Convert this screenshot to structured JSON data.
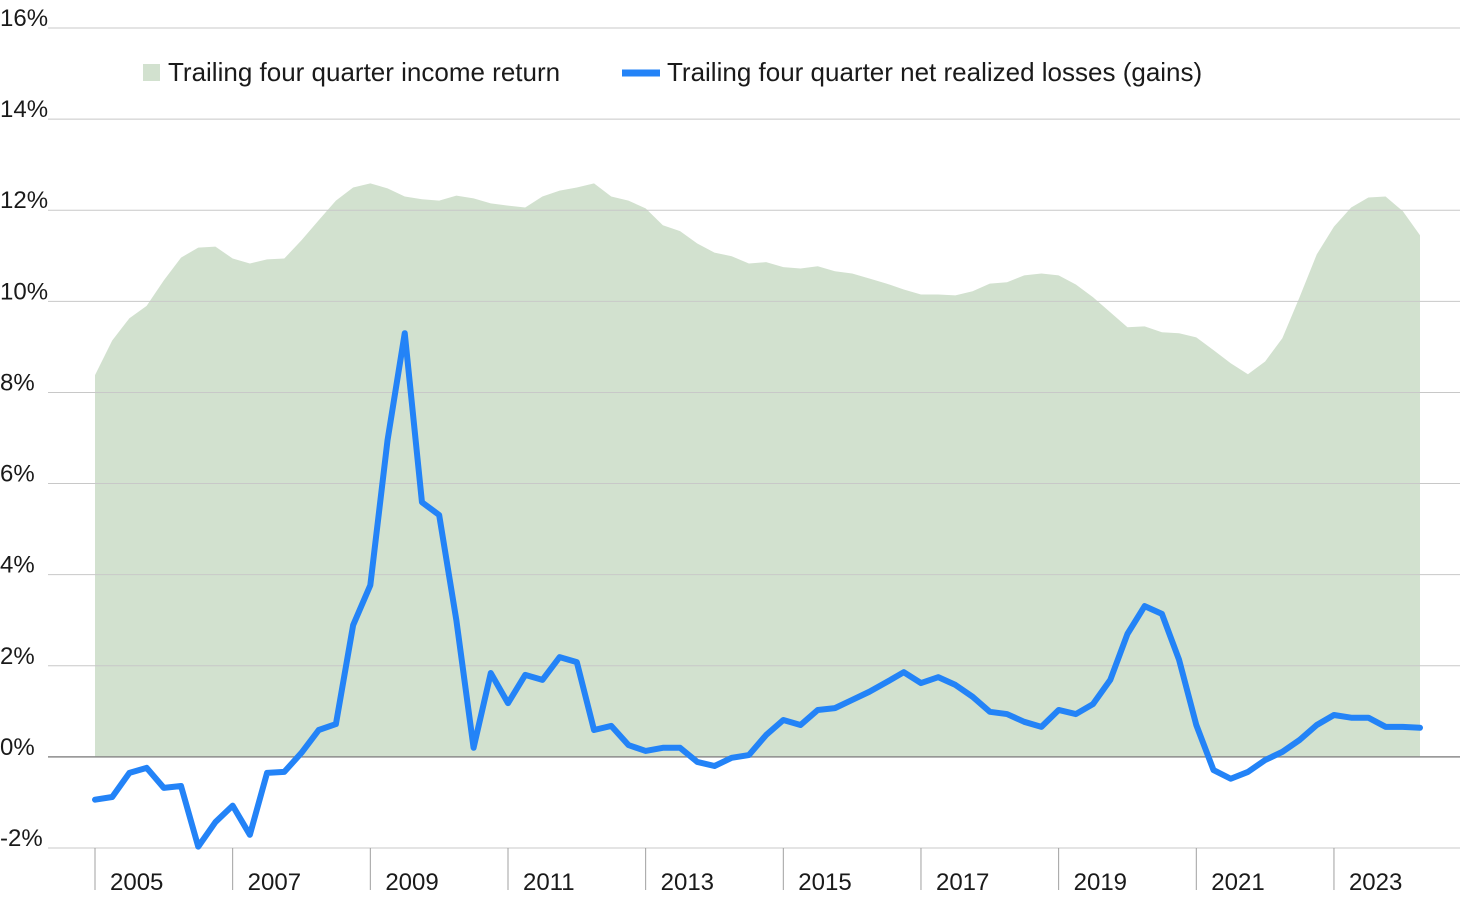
{
  "chart_data": {
    "type": "line",
    "categories": [
      "2005",
      null,
      null,
      null,
      null,
      null,
      null,
      null,
      "2007",
      null,
      null,
      null,
      null,
      null,
      null,
      null,
      "2009",
      null,
      null,
      null,
      null,
      null,
      null,
      null,
      "2011",
      null,
      null,
      null,
      null,
      null,
      null,
      null,
      "2013",
      null,
      null,
      null,
      null,
      null,
      null,
      null,
      "2015",
      null,
      null,
      null,
      null,
      null,
      null,
      null,
      "2017",
      null,
      null,
      null,
      null,
      null,
      null,
      null,
      "2019",
      null,
      null,
      null,
      null,
      null,
      null,
      null,
      "2021",
      null,
      null,
      null,
      null,
      null,
      null,
      null,
      "2023",
      null,
      null,
      null,
      null,
      null
    ],
    "series": [
      {
        "name": "Trailing four quarter income return",
        "style": "area",
        "color": "#d2e1cf",
        "values": [
          8.38,
          9.14,
          9.63,
          9.9,
          10.46,
          10.96,
          11.18,
          11.2,
          10.94,
          10.83,
          10.92,
          10.94,
          11.34,
          11.78,
          12.21,
          12.5,
          12.59,
          12.48,
          12.3,
          12.24,
          12.21,
          12.32,
          12.26,
          12.15,
          12.1,
          12.06,
          12.3,
          12.43,
          12.5,
          12.59,
          12.3,
          12.21,
          12.04,
          11.67,
          11.54,
          11.27,
          11.07,
          10.99,
          10.83,
          10.86,
          10.75,
          10.72,
          10.77,
          10.66,
          10.61,
          10.5,
          10.39,
          10.26,
          10.15,
          10.15,
          10.13,
          10.22,
          10.39,
          10.42,
          10.57,
          10.61,
          10.57,
          10.37,
          10.09,
          9.76,
          9.43,
          9.45,
          9.32,
          9.3,
          9.21,
          8.93,
          8.64,
          8.4,
          8.68,
          9.19,
          10.09,
          11.03,
          11.64,
          12.06,
          12.28,
          12.3,
          11.98,
          11.45
        ]
      },
      {
        "name": "Trailing four quarter net realized losses (gains)",
        "style": "line",
        "color": "#2383f7",
        "values": [
          -0.94,
          -0.88,
          -0.35,
          -0.24,
          -0.68,
          -0.64,
          -1.97,
          -1.43,
          -1.07,
          -1.71,
          -0.35,
          -0.33,
          0.09,
          0.59,
          0.72,
          2.89,
          3.77,
          6.95,
          9.3,
          5.59,
          5.31,
          3.0,
          0.2,
          1.84,
          1.18,
          1.8,
          1.69,
          2.19,
          2.08,
          0.59,
          0.68,
          0.26,
          0.13,
          0.2,
          0.2,
          -0.11,
          -0.2,
          -0.02,
          0.04,
          0.48,
          0.81,
          0.7,
          1.03,
          1.07,
          1.25,
          1.43,
          1.64,
          1.86,
          1.62,
          1.75,
          1.58,
          1.32,
          0.99,
          0.94,
          0.77,
          0.66,
          1.03,
          0.94,
          1.16,
          1.69,
          2.7,
          3.31,
          3.14,
          2.13,
          0.7,
          -0.29,
          -0.48,
          -0.33,
          -0.07,
          0.11,
          0.37,
          0.7,
          0.92,
          0.86,
          0.86,
          0.66,
          0.66,
          0.64
        ]
      }
    ],
    "ylim": [
      -2,
      16
    ],
    "yticks": [
      {
        "value": -2,
        "label": "-2%"
      },
      {
        "value": 0,
        "label": "0%"
      },
      {
        "value": 2,
        "label": "2%"
      },
      {
        "value": 4,
        "label": "4%"
      },
      {
        "value": 6,
        "label": "6%"
      },
      {
        "value": 8,
        "label": "8%"
      },
      {
        "value": 10,
        "label": "10%"
      },
      {
        "value": 12,
        "label": "12%"
      },
      {
        "value": 14,
        "label": "14%"
      },
      {
        "value": 16,
        "label": "16%"
      }
    ],
    "grid": true,
    "legend": "top"
  }
}
